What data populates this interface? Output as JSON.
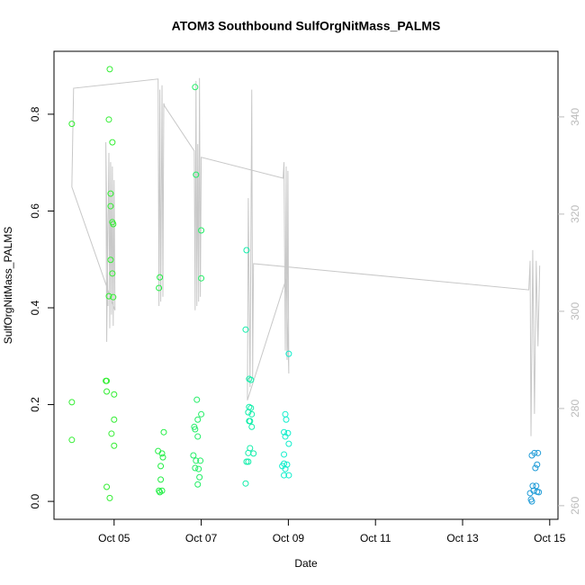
{
  "chart_data": {
    "type": "scatter",
    "title": "ATOM3 Southbound SulfOrgNitMass_PALMS",
    "xlabel": "Date",
    "ylabel": "SulfOrgNitMass_PALMS",
    "xlim": [
      3.62,
      15.19
    ],
    "ylim": [
      -0.037,
      0.93
    ],
    "y2lim": [
      257.2,
      353.5
    ],
    "xticks": [
      {
        "value": 5,
        "label": "Oct 05"
      },
      {
        "value": 7,
        "label": "Oct 07"
      },
      {
        "value": 9,
        "label": "Oct 09"
      },
      {
        "value": 11,
        "label": "Oct 11"
      },
      {
        "value": 13,
        "label": "Oct 13"
      },
      {
        "value": 15,
        "label": "Oct 15"
      }
    ],
    "yticks": [
      {
        "value": 0,
        "label": "0.0"
      },
      0.2,
      0.4,
      0.6,
      0.8
    ],
    "y2ticks": [
      260,
      280,
      300,
      320,
      340
    ],
    "series": [
      {
        "type": "line",
        "axis": "y2",
        "color": "#c8c8c8",
        "x": [
          4.86,
          4.81,
          4.83,
          4.88,
          4.9,
          4.92,
          4.94,
          4.96,
          4.98,
          5.0,
          5.02,
          4.03,
          4.07,
          6.01,
          6.03,
          6.05,
          6.07,
          6.1,
          6.12,
          6.14,
          6.16,
          6.84,
          6.86,
          6.88,
          6.9,
          6.92,
          6.94,
          6.96,
          6.98,
          7.0,
          8.88,
          8.9,
          8.93,
          8.95,
          8.97,
          8.99,
          9.01,
          8.95,
          8.06,
          8.08,
          8.12,
          8.16,
          8.18,
          8.2,
          14.52,
          14.55,
          14.57,
          14.61,
          14.65,
          14.69,
          14.73,
          14.77
        ],
        "values": [
          301.1,
          334.8,
          293.7,
          332.6,
          296.5,
          330.7,
          299.3,
          329.8,
          297.0,
          327.0,
          300.2,
          325.6,
          345.9,
          347.8,
          301.1,
          345.6,
          302.0,
          346.5,
          303.0,
          342.8,
          342.2,
          333.0,
          300.2,
          347.4,
          301.1,
          334.4,
          302.0,
          348.0,
          303.0,
          331.7,
          327.4,
          330.7,
          291.9,
          329.8,
          290.0,
          328.9,
          287.2,
          306.7,
          281.7,
          323.3,
          284.4,
          345.6,
          286.3,
          309.8,
          304.4,
          310.4,
          274.3,
          312.6,
          278.9,
          310.4,
          292.8,
          309.4
        ]
      },
      {
        "type": "scatter",
        "color": "#33ee33",
        "x": [
          4.03,
          4.03,
          4.03,
          4.9,
          4.88,
          4.96,
          4.92,
          4.92,
          4.96,
          4.98,
          4.92,
          4.96,
          4.88,
          4.98,
          4.81,
          4.83,
          4.83,
          5.0,
          5.0,
          4.94,
          5.0,
          4.83,
          4.9
        ],
        "values": [
          0.78,
          0.205,
          0.127,
          0.893,
          0.789,
          0.742,
          0.636,
          0.61,
          0.577,
          0.573,
          0.499,
          0.471,
          0.424,
          0.422,
          0.249,
          0.249,
          0.227,
          0.221,
          0.169,
          0.14,
          0.115,
          0.03,
          0.007
        ]
      },
      {
        "type": "scatter",
        "color": "#22ee44",
        "x": [
          6.05,
          6.03,
          6.14,
          6.01,
          6.1,
          6.12,
          6.07,
          6.07,
          6.03,
          6.1,
          6.05
        ],
        "values": [
          0.463,
          0.441,
          0.143,
          0.104,
          0.099,
          0.091,
          0.073,
          0.045,
          0.022,
          0.022,
          0.019
        ]
      },
      {
        "type": "scatter",
        "color": "#22ee66",
        "x": [
          6.86,
          6.88,
          7.0,
          7.0,
          6.9,
          7.0,
          6.92,
          6.84,
          6.86,
          6.92,
          6.82,
          6.98,
          6.88,
          6.86,
          6.94,
          6.96,
          6.92
        ],
        "values": [
          0.856,
          0.675,
          0.56,
          0.461,
          0.21,
          0.18,
          0.169,
          0.154,
          0.149,
          0.134,
          0.095,
          0.084,
          0.084,
          0.069,
          0.067,
          0.05,
          0.035
        ]
      },
      {
        "type": "scatter",
        "color": "#11eeaa",
        "x": [
          8.04,
          8.02,
          8.1,
          8.14,
          8.1,
          8.14,
          8.08,
          8.16,
          8.1,
          8.12,
          8.16,
          8.12,
          8.08,
          8.2,
          8.04,
          8.08,
          8.02
        ],
        "values": [
          0.519,
          0.355,
          0.253,
          0.251,
          0.195,
          0.193,
          0.184,
          0.18,
          0.166,
          0.166,
          0.154,
          0.11,
          0.1,
          0.099,
          0.082,
          0.082,
          0.037
        ]
      },
      {
        "type": "scatter",
        "color": "#11eecc",
        "x": [
          9.01,
          8.93,
          8.95,
          8.9,
          8.99,
          8.93,
          9.01,
          8.9,
          8.9,
          8.86,
          8.97,
          8.93,
          9.01,
          8.9
        ],
        "values": [
          0.305,
          0.18,
          0.169,
          0.143,
          0.141,
          0.134,
          0.119,
          0.097,
          0.078,
          0.073,
          0.076,
          0.067,
          0.054,
          0.054
        ]
      },
      {
        "type": "scatter",
        "color": "#1e9bd7",
        "x": [
          14.65,
          14.73,
          14.59,
          14.71,
          14.67,
          14.61,
          14.69,
          14.55,
          14.63,
          14.71,
          14.75,
          14.57,
          14.59
        ],
        "values": [
          0.1,
          0.1,
          0.095,
          0.076,
          0.069,
          0.032,
          0.032,
          0.017,
          0.022,
          0.02,
          0.019,
          0.004,
          0.0
        ]
      }
    ]
  }
}
